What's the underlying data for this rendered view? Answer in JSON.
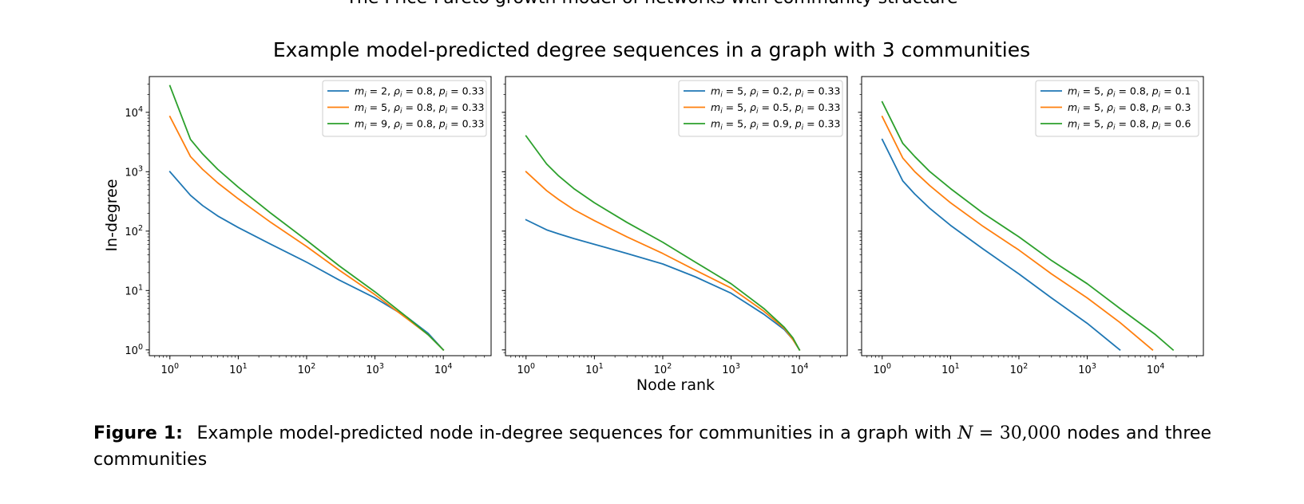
{
  "top_title": "The Price-Pareto growth model of networks with community structure",
  "caption": {
    "label": "Figure 1:",
    "text_before": "Example model-predicted node in-degree sequences for communities in a graph with",
    "math_var": "N",
    "math_eq": " = 30,000",
    "text_after": "nodes and three communities"
  },
  "colors": {
    "blue": "#1f77b4",
    "orange": "#ff7f0e",
    "green": "#2ca02c"
  },
  "chart_data": {
    "type": "line",
    "title": "Example model-predicted degree sequences in a graph with 3 communities",
    "xlabel": "Node rank",
    "ylabel": "In-degree",
    "xscale": "log",
    "yscale": "log",
    "xlim": [
      0.5,
      50000
    ],
    "ylim": [
      0.8,
      40000
    ],
    "x_ticks": [
      1,
      10,
      100,
      1000,
      10000
    ],
    "y_ticks": [
      1,
      10,
      100,
      1000,
      10000
    ],
    "legend_position": "upper right",
    "panels": [
      {
        "series": [
          {
            "name": "m_i = 2, ρ_i = 0.8, p_i = 0.33",
            "label_parts": {
              "m": "2",
              "rho": "0.8",
              "p": "0.33"
            },
            "color": "blue",
            "points": [
              [
                1,
                1000
              ],
              [
                2,
                400
              ],
              [
                3,
                270
              ],
              [
                5,
                180
              ],
              [
                10,
                115
              ],
              [
                30,
                60
              ],
              [
                100,
                30
              ],
              [
                300,
                15
              ],
              [
                1000,
                7.5
              ],
              [
                3000,
                3.5
              ],
              [
                6000,
                1.9
              ],
              [
                10000,
                1
              ]
            ]
          },
          {
            "name": "m_i = 5, ρ_i = 0.8, p_i = 0.33",
            "label_parts": {
              "m": "5",
              "rho": "0.8",
              "p": "0.33"
            },
            "color": "orange",
            "points": [
              [
                1,
                8500
              ],
              [
                2,
                1800
              ],
              [
                3,
                1100
              ],
              [
                5,
                650
              ],
              [
                10,
                350
              ],
              [
                30,
                140
              ],
              [
                100,
                55
              ],
              [
                300,
                22
              ],
              [
                1000,
                8.5
              ],
              [
                3000,
                3.3
              ],
              [
                6000,
                1.8
              ],
              [
                10000,
                1
              ]
            ]
          },
          {
            "name": "m_i = 9, ρ_i = 0.8, p_i = 0.33",
            "label_parts": {
              "m": "9",
              "rho": "0.8",
              "p": "0.33"
            },
            "color": "green",
            "points": [
              [
                1,
                28000
              ],
              [
                2,
                3500
              ],
              [
                3,
                2000
              ],
              [
                5,
                1100
              ],
              [
                10,
                550
              ],
              [
                30,
                200
              ],
              [
                100,
                70
              ],
              [
                300,
                26
              ],
              [
                1000,
                9.5
              ],
              [
                3000,
                3.5
              ],
              [
                6000,
                1.8
              ],
              [
                10000,
                1
              ]
            ]
          }
        ]
      },
      {
        "series": [
          {
            "name": "m_i = 5, ρ_i = 0.2, p_i = 0.33",
            "label_parts": {
              "m": "5",
              "rho": "0.2",
              "p": "0.33"
            },
            "color": "blue",
            "points": [
              [
                1,
                155
              ],
              [
                2,
                105
              ],
              [
                3,
                90
              ],
              [
                5,
                75
              ],
              [
                10,
                60
              ],
              [
                30,
                42
              ],
              [
                100,
                28
              ],
              [
                300,
                17
              ],
              [
                1000,
                9
              ],
              [
                3000,
                4
              ],
              [
                6000,
                2.2
              ],
              [
                8000,
                1.5
              ],
              [
                10000,
                1
              ]
            ]
          },
          {
            "name": "m_i = 5, ρ_i = 0.5, p_i = 0.33",
            "label_parts": {
              "m": "5",
              "rho": "0.5",
              "p": "0.33"
            },
            "color": "orange",
            "points": [
              [
                1,
                1000
              ],
              [
                2,
                480
              ],
              [
                3,
                340
              ],
              [
                5,
                230
              ],
              [
                10,
                150
              ],
              [
                30,
                80
              ],
              [
                100,
                42
              ],
              [
                300,
                22
              ],
              [
                1000,
                11
              ],
              [
                3000,
                4.5
              ],
              [
                6000,
                2.3
              ],
              [
                8000,
                1.5
              ],
              [
                10000,
                1
              ]
            ]
          },
          {
            "name": "m_i = 5, ρ_i = 0.9, p_i = 0.33",
            "label_parts": {
              "m": "5",
              "rho": "0.9",
              "p": "0.33"
            },
            "color": "green",
            "points": [
              [
                1,
                4000
              ],
              [
                2,
                1350
              ],
              [
                3,
                850
              ],
              [
                5,
                520
              ],
              [
                10,
                300
              ],
              [
                30,
                140
              ],
              [
                100,
                65
              ],
              [
                300,
                30
              ],
              [
                1000,
                13
              ],
              [
                3000,
                5
              ],
              [
                6000,
                2.4
              ],
              [
                8000,
                1.6
              ],
              [
                10000,
                1
              ]
            ]
          }
        ]
      },
      {
        "series": [
          {
            "name": "m_i = 5, ρ_i = 0.8, p_i = 0.1",
            "label_parts": {
              "m": "5",
              "rho": "0.8",
              "p": "0.1"
            },
            "color": "blue",
            "points": [
              [
                1,
                3500
              ],
              [
                2,
                700
              ],
              [
                3,
                420
              ],
              [
                5,
                240
              ],
              [
                10,
                125
              ],
              [
                30,
                50
              ],
              [
                100,
                19
              ],
              [
                300,
                7.5
              ],
              [
                1000,
                2.8
              ],
              [
                3000,
                1
              ]
            ]
          },
          {
            "name": "m_i = 5, ρ_i = 0.8, p_i = 0.3",
            "label_parts": {
              "m": "5",
              "rho": "0.8",
              "p": "0.3"
            },
            "color": "orange",
            "points": [
              [
                1,
                8500
              ],
              [
                2,
                1700
              ],
              [
                3,
                1000
              ],
              [
                5,
                580
              ],
              [
                10,
                300
              ],
              [
                30,
                120
              ],
              [
                100,
                48
              ],
              [
                300,
                19
              ],
              [
                1000,
                7.5
              ],
              [
                3000,
                2.9
              ],
              [
                9000,
                1
              ]
            ]
          },
          {
            "name": "m_i = 5, ρ_i = 0.8, p_i = 0.6",
            "label_parts": {
              "m": "5",
              "rho": "0.8",
              "p": "0.6"
            },
            "color": "green",
            "points": [
              [
                1,
                15000
              ],
              [
                2,
                3000
              ],
              [
                3,
                1800
              ],
              [
                5,
                1000
              ],
              [
                10,
                520
              ],
              [
                30,
                200
              ],
              [
                100,
                80
              ],
              [
                300,
                32
              ],
              [
                1000,
                13
              ],
              [
                3000,
                5
              ],
              [
                10000,
                1.8
              ],
              [
                18000,
                1
              ]
            ]
          }
        ]
      }
    ]
  }
}
